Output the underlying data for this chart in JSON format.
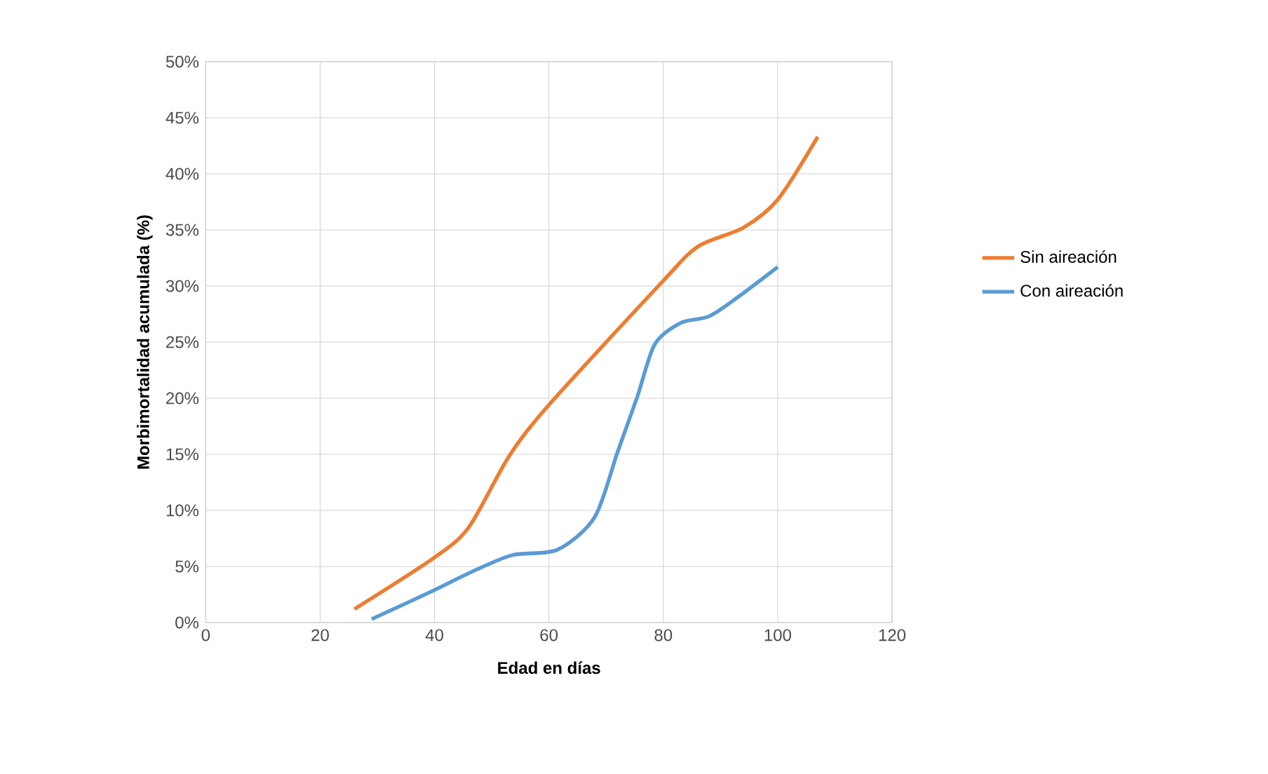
{
  "chart_data": {
    "type": "line",
    "xlabel": "Edad en días",
    "ylabel": "Morbimortalidad acumulada (%)",
    "xlim": [
      0,
      120
    ],
    "xticks": [
      0,
      20,
      40,
      60,
      80,
      100,
      120
    ],
    "ylim": [
      0,
      50
    ],
    "yticks": [
      {
        "value": 0,
        "label": "0%"
      },
      {
        "value": 5,
        "label": "5%"
      },
      {
        "value": 10,
        "label": "10%"
      },
      {
        "value": 15,
        "label": "15%"
      },
      {
        "value": 20,
        "label": "20%"
      },
      {
        "value": 25,
        "label": "25%"
      },
      {
        "value": 30,
        "label": "30%"
      },
      {
        "value": 35,
        "label": "35%"
      },
      {
        "value": 40,
        "label": "40%"
      },
      {
        "value": 45,
        "label": "45%"
      },
      {
        "value": 50,
        "label": "50%"
      }
    ],
    "grid": true,
    "legend": "right",
    "series": [
      {
        "name": "Sin aireación",
        "color": "#ed7d31",
        "x": [
          26,
          40,
          46,
          53,
          60,
          79.5,
          86,
          94,
          100,
          107
        ],
        "values": [
          1.2,
          5.8,
          8.5,
          14.8,
          19.4,
          30.2,
          33.5,
          35.2,
          37.7,
          43.3
        ]
      },
      {
        "name": "Con aireación",
        "color": "#5b9bd5",
        "x": [
          29,
          40,
          46,
          53.5,
          61.5,
          68,
          72,
          75.5,
          78.5,
          83,
          88,
          93,
          100
        ],
        "values": [
          0.3,
          2.9,
          4.4,
          6.0,
          6.5,
          9.4,
          15.2,
          20.2,
          24.8,
          26.7,
          27.3,
          29.0,
          31.7
        ]
      }
    ]
  }
}
